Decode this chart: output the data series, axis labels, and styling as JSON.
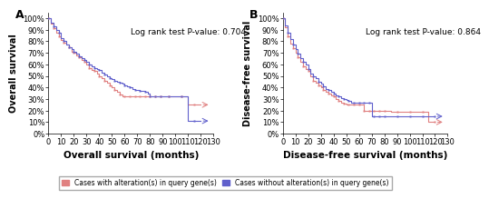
{
  "panel_A": {
    "label": "A",
    "title_annotation": "Log rank test P-value: 0.704",
    "xlabel": "Overall survival (months)",
    "ylabel": "Overall survival",
    "xlim": [
      0,
      130
    ],
    "ylim": [
      0,
      1.05
    ],
    "yticks": [
      0,
      0.1,
      0.2,
      0.3,
      0.4,
      0.5,
      0.6,
      0.7,
      0.8,
      0.9,
      1.0
    ],
    "xticks": [
      0,
      10,
      20,
      30,
      40,
      50,
      60,
      70,
      80,
      90,
      100,
      110,
      120,
      130
    ],
    "altered_x": [
      0,
      2,
      4,
      6,
      8,
      10,
      12,
      14,
      16,
      18,
      20,
      22,
      24,
      26,
      28,
      30,
      32,
      34,
      36,
      38,
      40,
      42,
      44,
      46,
      48,
      50,
      52,
      54,
      56,
      58,
      60,
      62,
      64,
      66,
      68,
      70,
      72,
      74,
      76,
      78,
      80,
      82,
      84,
      86,
      88,
      90,
      95,
      100,
      105,
      110,
      115,
      120
    ],
    "altered_y": [
      1.0,
      0.95,
      0.91,
      0.87,
      0.84,
      0.81,
      0.79,
      0.77,
      0.75,
      0.71,
      0.7,
      0.68,
      0.66,
      0.64,
      0.62,
      0.6,
      0.57,
      0.55,
      0.54,
      0.52,
      0.5,
      0.48,
      0.46,
      0.44,
      0.42,
      0.4,
      0.38,
      0.36,
      0.34,
      0.32,
      0.32,
      0.32,
      0.32,
      0.32,
      0.32,
      0.32,
      0.32,
      0.32,
      0.32,
      0.32,
      0.32,
      0.32,
      0.32,
      0.32,
      0.32,
      0.32,
      0.32,
      0.32,
      0.32,
      0.25,
      0.25,
      0.25
    ],
    "unaltered_x": [
      0,
      2,
      4,
      6,
      8,
      10,
      12,
      14,
      16,
      18,
      20,
      22,
      24,
      26,
      28,
      30,
      32,
      34,
      36,
      38,
      40,
      42,
      44,
      46,
      48,
      50,
      52,
      54,
      56,
      58,
      60,
      62,
      64,
      66,
      68,
      70,
      72,
      74,
      76,
      78,
      80,
      82,
      84,
      86,
      88,
      90,
      95,
      100,
      105,
      110,
      115,
      120
    ],
    "unaltered_y": [
      1.0,
      0.96,
      0.93,
      0.9,
      0.87,
      0.83,
      0.8,
      0.77,
      0.75,
      0.73,
      0.71,
      0.69,
      0.67,
      0.65,
      0.64,
      0.62,
      0.6,
      0.58,
      0.57,
      0.56,
      0.55,
      0.53,
      0.51,
      0.5,
      0.48,
      0.47,
      0.46,
      0.45,
      0.44,
      0.43,
      0.42,
      0.41,
      0.4,
      0.39,
      0.38,
      0.38,
      0.37,
      0.37,
      0.36,
      0.35,
      0.32,
      0.32,
      0.32,
      0.32,
      0.32,
      0.32,
      0.32,
      0.32,
      0.32,
      0.11,
      0.11,
      0.11
    ]
  },
  "panel_B": {
    "label": "B",
    "title_annotation": "Log rank test P-value: 0.864",
    "xlabel": "Disease-free survival (months)",
    "ylabel": "Disease-free survival",
    "xlim": [
      0,
      130
    ],
    "ylim": [
      0,
      1.05
    ],
    "yticks": [
      0,
      0.1,
      0.2,
      0.3,
      0.4,
      0.5,
      0.6,
      0.7,
      0.8,
      0.9,
      1.0
    ],
    "xticks": [
      0,
      10,
      20,
      30,
      40,
      50,
      60,
      70,
      80,
      90,
      100,
      110,
      120,
      130
    ],
    "altered_x": [
      0,
      2,
      4,
      6,
      8,
      10,
      12,
      14,
      16,
      18,
      20,
      22,
      24,
      26,
      28,
      30,
      32,
      34,
      36,
      38,
      40,
      42,
      44,
      46,
      48,
      50,
      52,
      54,
      56,
      58,
      60,
      62,
      64,
      66,
      68,
      70,
      72,
      74,
      76,
      78,
      80,
      85,
      90,
      95,
      100,
      105,
      110,
      115,
      120
    ],
    "altered_y": [
      1.0,
      0.92,
      0.84,
      0.78,
      0.74,
      0.7,
      0.66,
      0.62,
      0.58,
      0.56,
      0.54,
      0.5,
      0.46,
      0.44,
      0.42,
      0.4,
      0.38,
      0.36,
      0.35,
      0.33,
      0.32,
      0.3,
      0.28,
      0.27,
      0.26,
      0.25,
      0.25,
      0.25,
      0.25,
      0.25,
      0.25,
      0.25,
      0.2,
      0.2,
      0.2,
      0.2,
      0.2,
      0.2,
      0.2,
      0.2,
      0.2,
      0.19,
      0.19,
      0.19,
      0.19,
      0.19,
      0.19,
      0.1,
      0.1
    ],
    "unaltered_x": [
      0,
      2,
      4,
      6,
      8,
      10,
      12,
      14,
      16,
      18,
      20,
      22,
      24,
      26,
      28,
      30,
      32,
      34,
      36,
      38,
      40,
      42,
      44,
      46,
      48,
      50,
      52,
      54,
      56,
      58,
      60,
      62,
      64,
      66,
      68,
      70,
      72,
      74,
      76,
      78,
      80,
      85,
      90,
      95,
      100,
      105,
      110,
      115,
      120
    ],
    "unaltered_y": [
      1.0,
      0.94,
      0.87,
      0.82,
      0.77,
      0.73,
      0.69,
      0.65,
      0.62,
      0.6,
      0.56,
      0.52,
      0.5,
      0.48,
      0.45,
      0.43,
      0.41,
      0.39,
      0.38,
      0.36,
      0.35,
      0.33,
      0.32,
      0.31,
      0.3,
      0.29,
      0.28,
      0.27,
      0.27,
      0.27,
      0.27,
      0.27,
      0.27,
      0.27,
      0.27,
      0.15,
      0.15,
      0.15,
      0.15,
      0.15,
      0.15,
      0.15,
      0.15,
      0.15,
      0.15,
      0.15,
      0.15,
      0.15,
      0.15
    ]
  },
  "altered_color": "#e08080",
  "unaltered_color": "#6060cc",
  "legend_label_altered": "Cases with alteration(s) in query gene(s)",
  "legend_label_unaltered": "Cases without alteration(s) in query gene(s)",
  "annotation_fontsize": 6.5,
  "label_fontsize": 7.5,
  "tick_fontsize": 6,
  "ylabel_fontsize": 7
}
